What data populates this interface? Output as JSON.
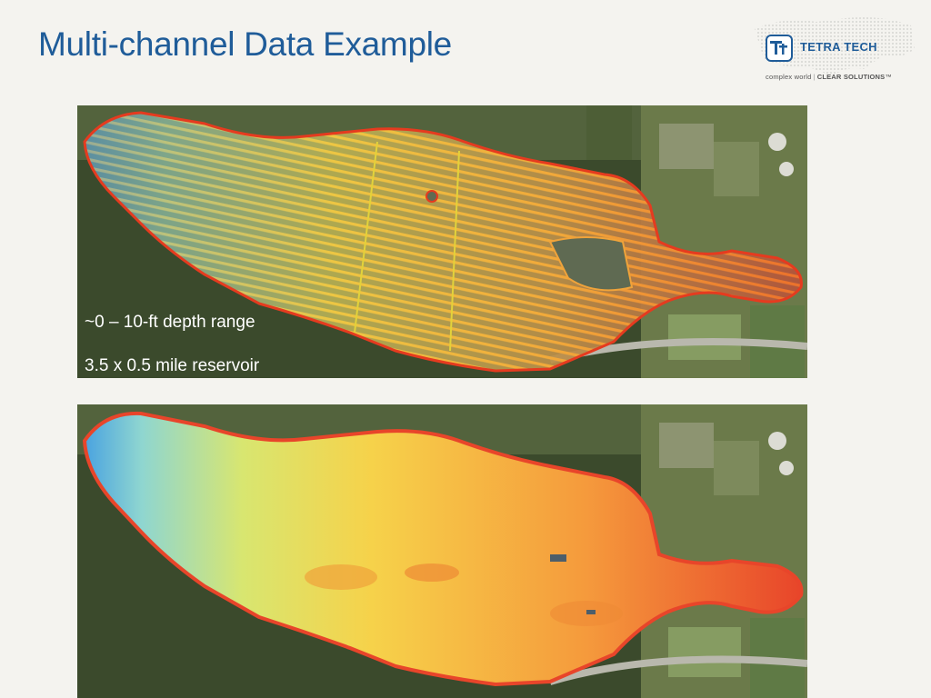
{
  "slide": {
    "title": "Multi-channel Data Example"
  },
  "logo": {
    "mark": "Tt",
    "name": "TETRA TECH",
    "tagline_left": "complex world",
    "tagline_right": "CLEAR SOLUTIONS",
    "tagline_mark": "™"
  },
  "annotations": {
    "depth_range": "~0 – 10-ft depth range",
    "reservoir_size": "3.5 x 0.5 mile reservoir"
  },
  "images": {
    "top": "survey transect lines over aerial photo",
    "bottom": "interpolated bathymetry surface over aerial photo"
  },
  "colors": {
    "title": "#1f5c99",
    "deep": "#4aa3e0",
    "mid": "#f4d03f",
    "shallow": "#e53b1f"
  }
}
